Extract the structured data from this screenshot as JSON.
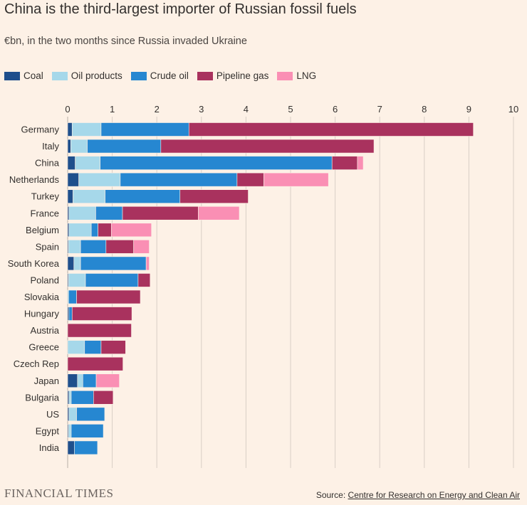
{
  "title": "China is the third-largest importer of Russian fossil fuels",
  "subtitle": "€bn, in the two months since Russia invaded Ukraine",
  "legend": [
    {
      "label": "Coal",
      "color": "#1f4f8c"
    },
    {
      "label": "Oil products",
      "color": "#a6d8ea"
    },
    {
      "label": "Crude oil",
      "color": "#2687d1"
    },
    {
      "label": "Pipeline gas",
      "color": "#a9325e"
    },
    {
      "label": "LNG",
      "color": "#fa8fb4"
    }
  ],
  "footer": {
    "logo": "FINANCIAL TIMES",
    "source_prefix": "Source: ",
    "source_link": "Centre for Research on Energy and Clean Air"
  },
  "chart_data": {
    "type": "bar",
    "orientation": "horizontal",
    "stacked": true,
    "title": "China is the third-largest importer of Russian fossil fuels",
    "subtitle": "€bn, in the two months since Russia invaded Ukraine",
    "xlim": [
      0,
      10
    ],
    "xticks": [
      0,
      1,
      2,
      3,
      4,
      5,
      6,
      7,
      8,
      9,
      10
    ],
    "grid": true,
    "legend_position": "top",
    "categories": [
      "Germany",
      "Italy",
      "China",
      "Netherlands",
      "Turkey",
      "France",
      "Belgium",
      "Spain",
      "South Korea",
      "Poland",
      "Slovakia",
      "Hungary",
      "Austria",
      "Greece",
      "Czech Rep",
      "Japan",
      "Bulgaria",
      "US",
      "Egypt",
      "India"
    ],
    "series": [
      {
        "name": "Coal",
        "color": "#1f4f8c",
        "values": [
          0.1,
          0.07,
          0.17,
          0.25,
          0.12,
          0.03,
          0.03,
          0.02,
          0.14,
          0.02,
          0.0,
          0.03,
          0.0,
          0.0,
          0.0,
          0.22,
          0.03,
          0.03,
          0.02,
          0.15
        ]
      },
      {
        "name": "Oil products",
        "color": "#a6d8ea",
        "values": [
          0.65,
          0.37,
          0.56,
          0.93,
          0.72,
          0.6,
          0.5,
          0.27,
          0.15,
          0.38,
          0.02,
          0.0,
          0.0,
          0.38,
          0.0,
          0.12,
          0.05,
          0.17,
          0.06,
          0.0
        ]
      },
      {
        "name": "Crude oil",
        "color": "#2687d1",
        "values": [
          1.97,
          1.65,
          5.2,
          2.62,
          1.68,
          0.6,
          0.15,
          0.57,
          1.47,
          1.18,
          0.18,
          0.07,
          0.0,
          0.37,
          0.0,
          0.3,
          0.5,
          0.63,
          0.72,
          0.52
        ]
      },
      {
        "name": "Pipeline gas",
        "color": "#a9325e",
        "values": [
          6.38,
          4.78,
          0.57,
          0.6,
          1.53,
          1.7,
          0.3,
          0.62,
          0.0,
          0.27,
          1.43,
          1.34,
          1.43,
          0.55,
          1.24,
          0.0,
          0.44,
          0.0,
          0.0,
          0.0
        ]
      },
      {
        "name": "LNG",
        "color": "#fa8fb4",
        "values": [
          0.0,
          0.0,
          0.13,
          1.45,
          0.0,
          0.92,
          0.9,
          0.35,
          0.07,
          0.0,
          0.0,
          0.0,
          0.0,
          0.0,
          0.0,
          0.52,
          0.0,
          0.0,
          0.0,
          0.0
        ]
      }
    ]
  }
}
